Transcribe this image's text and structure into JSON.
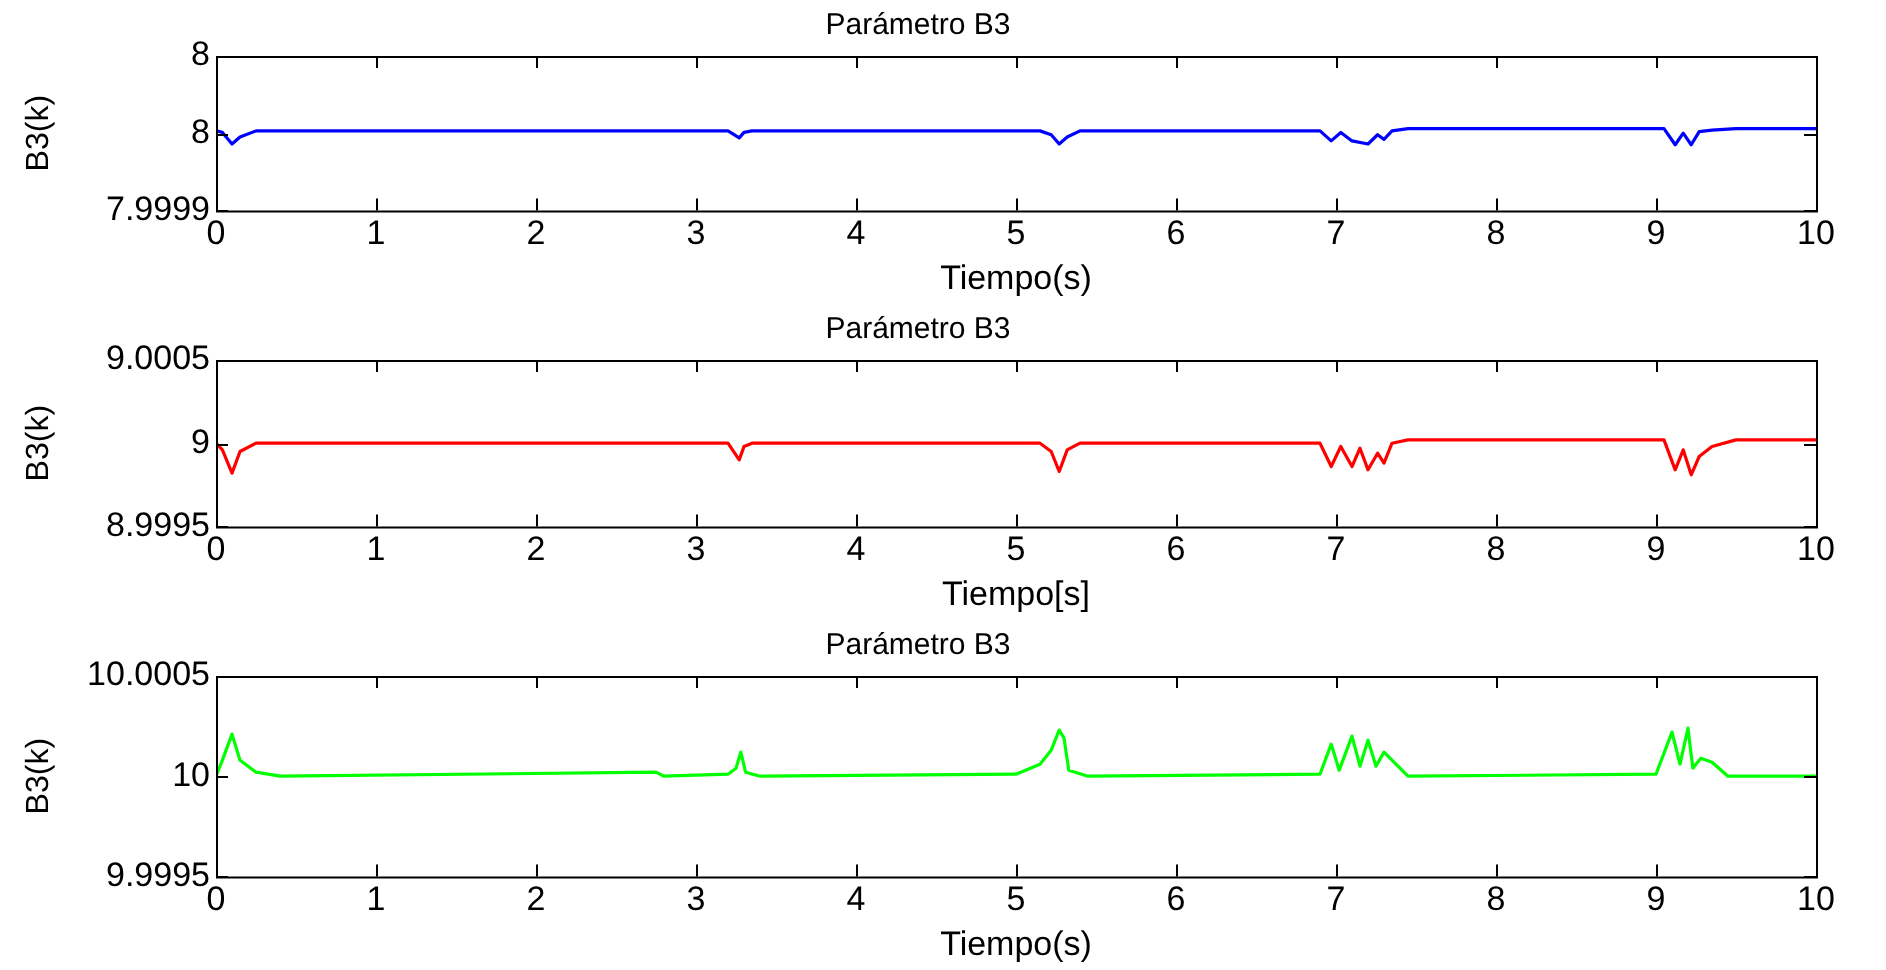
{
  "chart_data": [
    {
      "type": "line",
      "title": "Parámetro B3",
      "xlabel": "Tiempo(s)",
      "ylabel": "B3(k)",
      "xlim": [
        0,
        10
      ],
      "xticks": [
        0,
        1,
        2,
        3,
        4,
        5,
        6,
        7,
        8,
        9,
        10
      ],
      "ylim": [
        7.9999,
        8.0001
      ],
      "yticks": [
        7.9999,
        8,
        {
          "value": 8.0001,
          "label": "8"
        }
      ],
      "grid": false,
      "marker": "none",
      "legend": false,
      "x": [
        0,
        0.04,
        0.1,
        0.15,
        0.25,
        3.2,
        3.27,
        3.3,
        3.35,
        5.15,
        5.22,
        5.27,
        5.32,
        5.4,
        6.9,
        6.97,
        7.03,
        7.1,
        7.2,
        7.26,
        7.3,
        7.35,
        7.45,
        9.05,
        9.12,
        9.17,
        9.22,
        9.27,
        9.35,
        9.5,
        10
      ],
      "series": [
        {
          "color": "#0000ff",
          "values": [
            8.000003,
            8.000001,
            7.999986,
            7.999995,
            8.000003,
            8.000003,
            7.999994,
            8.000001,
            8.000003,
            8.000003,
            7.999998,
            7.999986,
            7.999995,
            8.000003,
            8.000003,
            7.99999,
            8.000001,
            7.99999,
            7.999986,
            7.999998,
            7.999992,
            8.000003,
            8.000006,
            8.000006,
            7.999985,
            8,
            7.999985,
            8.000002,
            8.000004,
            8.000006,
            8.000006
          ]
        }
      ]
    },
    {
      "type": "line",
      "title": "Parámetro B3",
      "xlabel": "Tiempo[s]",
      "ylabel": "B3(k)",
      "xlim": [
        0,
        10
      ],
      "xticks": [
        0,
        1,
        2,
        3,
        4,
        5,
        6,
        7,
        8,
        9,
        10
      ],
      "ylim": [
        8.9995,
        9.0005
      ],
      "yticks": [
        8.9995,
        9,
        9.0005
      ],
      "grid": false,
      "marker": "none",
      "legend": false,
      "x": [
        0,
        0.04,
        0.1,
        0.15,
        0.25,
        3.2,
        3.27,
        3.3,
        3.35,
        5.15,
        5.22,
        5.27,
        5.32,
        5.4,
        6.9,
        6.97,
        7.03,
        7.1,
        7.15,
        7.2,
        7.26,
        7.3,
        7.35,
        7.45,
        9.05,
        9.12,
        9.17,
        9.22,
        9.27,
        9.35,
        9.5,
        10
      ],
      "series": [
        {
          "color": "#ff0000",
          "values": [
            9,
            8.99996,
            8.99982,
            8.99995,
            9,
            9,
            8.9999,
            8.99998,
            9,
            9,
            8.99995,
            8.99983,
            8.99996,
            9,
            9,
            8.99986,
            8.99998,
            8.99986,
            8.99997,
            8.99984,
            8.99994,
            8.99988,
            9,
            9.00002,
            9.00002,
            8.99984,
            8.99996,
            8.99981,
            8.99992,
            8.99998,
            9.00002,
            9.00002
          ]
        }
      ]
    },
    {
      "type": "line",
      "title": "Parámetro B3",
      "xlabel": "Tiempo(s)",
      "ylabel": "B3(k)",
      "xlim": [
        0,
        10
      ],
      "xticks": [
        0,
        1,
        2,
        3,
        4,
        5,
        6,
        7,
        8,
        9,
        10
      ],
      "ylim": [
        9.9995,
        10.0005
      ],
      "yticks": [
        9.9995,
        10,
        10.0005
      ],
      "grid": false,
      "marker": "none",
      "legend": false,
      "x": [
        0,
        0.04,
        0.1,
        0.15,
        0.25,
        0.4,
        2.75,
        2.8,
        3.2,
        3.25,
        3.28,
        3.31,
        3.4,
        5.0,
        5.15,
        5.22,
        5.27,
        5.3,
        5.33,
        5.45,
        6.9,
        6.97,
        7.02,
        7.1,
        7.15,
        7.2,
        7.25,
        7.3,
        7.35,
        7.45,
        9.0,
        9.1,
        9.15,
        9.2,
        9.23,
        9.28,
        9.35,
        9.45,
        10
      ],
      "series": [
        {
          "color": "#00ff00",
          "values": [
            10,
            10.00008,
            10.00021,
            10.00008,
            10.00002,
            10,
            10.00002,
            10,
            10.00001,
            10.00004,
            10.00012,
            10.00002,
            10,
            10.00001,
            10.00006,
            10.00013,
            10.00023,
            10.00019,
            10.00003,
            10,
            10.00001,
            10.00016,
            10.00003,
            10.0002,
            10.00005,
            10.00018,
            10.00005,
            10.00012,
            10.00008,
            10,
            10.00001,
            10.00022,
            10.00006,
            10.00024,
            10.00004,
            10.00009,
            10.00007,
            10,
            10
          ]
        }
      ]
    }
  ]
}
